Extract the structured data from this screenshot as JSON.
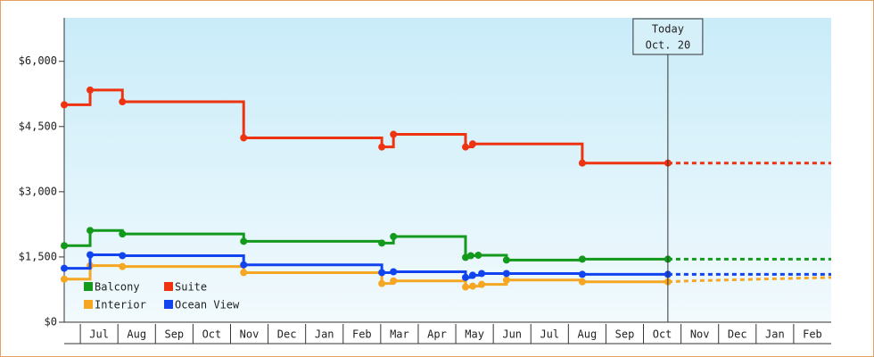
{
  "chart_data": {
    "type": "step-line",
    "ylim": [
      0,
      7000
    ],
    "yticks": [
      {
        "value": 0,
        "label": "$0"
      },
      {
        "value": 1500,
        "label": "$1,500"
      },
      {
        "value": 3000,
        "label": "$3,000"
      },
      {
        "value": 4500,
        "label": "$4,500"
      },
      {
        "value": 6000,
        "label": "$6,000"
      }
    ],
    "xlim": [
      -0.43,
      20
    ],
    "xticks": [
      {
        "value": 0.5,
        "label": "Jul"
      },
      {
        "value": 1.5,
        "label": "Aug"
      },
      {
        "value": 2.5,
        "label": "Sep"
      },
      {
        "value": 3.5,
        "label": "Oct"
      },
      {
        "value": 4.5,
        "label": "Nov"
      },
      {
        "value": 5.5,
        "label": "Dec"
      },
      {
        "value": 6.5,
        "label": "Jan"
      },
      {
        "value": 7.5,
        "label": "Feb"
      },
      {
        "value": 8.5,
        "label": "Mar"
      },
      {
        "value": 9.5,
        "label": "Apr"
      },
      {
        "value": 10.5,
        "label": "May"
      },
      {
        "value": 11.5,
        "label": "Jun"
      },
      {
        "value": 12.5,
        "label": "Jul"
      },
      {
        "value": 13.5,
        "label": "Aug"
      },
      {
        "value": 14.5,
        "label": "Sep"
      },
      {
        "value": 15.5,
        "label": "Oct"
      },
      {
        "value": 16.5,
        "label": "Nov"
      },
      {
        "value": 17.5,
        "label": "Dec"
      },
      {
        "value": 18.5,
        "label": "Jan"
      },
      {
        "value": 19.5,
        "label": "Feb"
      }
    ],
    "legend": "lower left",
    "annotation": {
      "x": 15.65,
      "text": [
        "Today",
        "Oct. 20"
      ]
    },
    "series": [
      {
        "name": "Balcony",
        "color": "#13991b",
        "x": [
          -0.43,
          0.26,
          1.12,
          4.35,
          8.03,
          8.34,
          10.26,
          10.4,
          10.6,
          11.35,
          13.37,
          15.65
        ],
        "values": [
          1760,
          2110,
          2030,
          1860,
          1820,
          1970,
          1490,
          1530,
          1540,
          1430,
          1450,
          1450
        ],
        "forecast_x": [
          15.65,
          20
        ],
        "forecast_values": [
          1450,
          1450
        ]
      },
      {
        "name": "Suite",
        "color": "#ee3311",
        "x": [
          -0.43,
          0.26,
          1.12,
          4.35,
          8.03,
          8.34,
          10.26,
          10.45,
          13.37,
          15.65
        ],
        "values": [
          5000,
          5340,
          5070,
          4240,
          4030,
          4320,
          4030,
          4100,
          3660,
          3660
        ],
        "forecast_x": [
          15.65,
          20
        ],
        "forecast_values": [
          3660,
          3660
        ]
      },
      {
        "name": "Interior",
        "color": "#f5a623",
        "x": [
          -0.43,
          0.26,
          1.12,
          4.35,
          8.03,
          8.34,
          10.26,
          10.45,
          10.69,
          11.35,
          13.37,
          15.65
        ],
        "values": [
          990,
          1300,
          1280,
          1140,
          890,
          950,
          810,
          830,
          870,
          970,
          930,
          930
        ],
        "forecast_x": [
          15.65,
          16.2,
          20
        ],
        "forecast_values": [
          930,
          950,
          1030
        ]
      },
      {
        "name": "Ocean View",
        "color": "#1144ee",
        "x": [
          -0.43,
          0.26,
          1.12,
          4.35,
          8.03,
          8.34,
          10.26,
          10.45,
          10.69,
          11.35,
          13.37,
          15.65
        ],
        "values": [
          1240,
          1550,
          1530,
          1320,
          1140,
          1160,
          1030,
          1080,
          1120,
          1120,
          1100,
          1100
        ],
        "forecast_x": [
          15.65,
          20
        ],
        "forecast_values": [
          1100,
          1100
        ]
      }
    ]
  }
}
